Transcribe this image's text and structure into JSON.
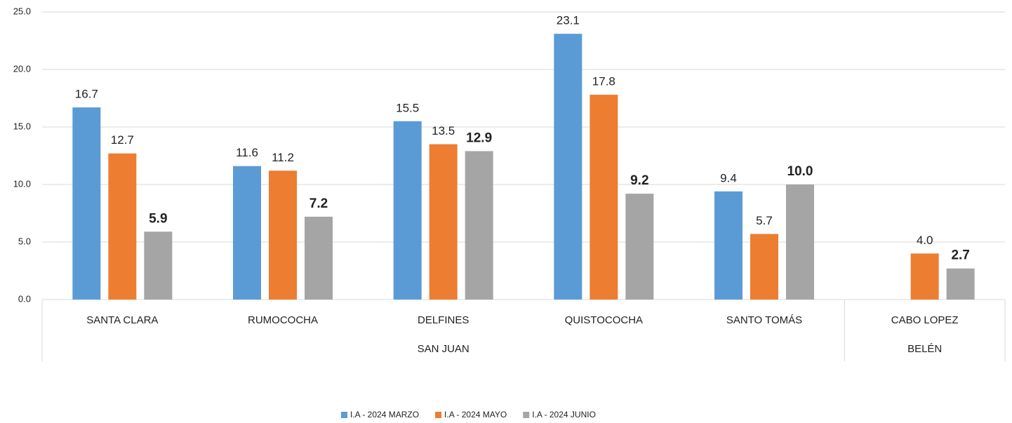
{
  "chart_data": {
    "type": "bar",
    "categories": [
      "SANTA CLARA",
      "RUMOCOCHA",
      "DELFINES",
      "QUISTOCOCHA",
      "SANTO TOMÁS",
      "CABO LOPEZ"
    ],
    "groups": [
      {
        "name": "SAN JUAN",
        "count": 5
      },
      {
        "name": "BELÉN",
        "count": 1
      }
    ],
    "series": [
      {
        "name": "I.A - 2024 MARZO",
        "color": "#5b9bd5",
        "values": [
          16.7,
          11.6,
          15.5,
          23.1,
          9.4,
          null
        ],
        "value_labels": [
          "16.7",
          "11.6",
          "15.5",
          "23.1",
          "9.4",
          null
        ]
      },
      {
        "name": "I.A - 2024 MAYO",
        "color": "#ed7d31",
        "values": [
          12.7,
          11.2,
          13.5,
          17.8,
          5.7,
          4.0
        ],
        "value_labels": [
          "12.7",
          "11.2",
          "13.5",
          "17.8",
          "5.7",
          "4.0"
        ]
      },
      {
        "name": "I.A - 2024 JUNIO",
        "color": "#a5a5a5",
        "values": [
          5.9,
          7.2,
          12.9,
          9.2,
          10.0,
          2.7
        ],
        "value_labels": [
          "5.9",
          "7.2",
          "12.9",
          "9.2",
          "10.0",
          "2.7"
        ]
      }
    ],
    "ylim": [
      0,
      25
    ],
    "yticks": [
      {
        "value": 0,
        "label": "0.0"
      },
      {
        "value": 5,
        "label": "5.0"
      },
      {
        "value": 10,
        "label": "10.0"
      },
      {
        "value": 15,
        "label": "15.0"
      },
      {
        "value": 20,
        "label": "20.0"
      },
      {
        "value": 25,
        "label": "25.0"
      }
    ],
    "grid": true,
    "legend": "bottom"
  }
}
